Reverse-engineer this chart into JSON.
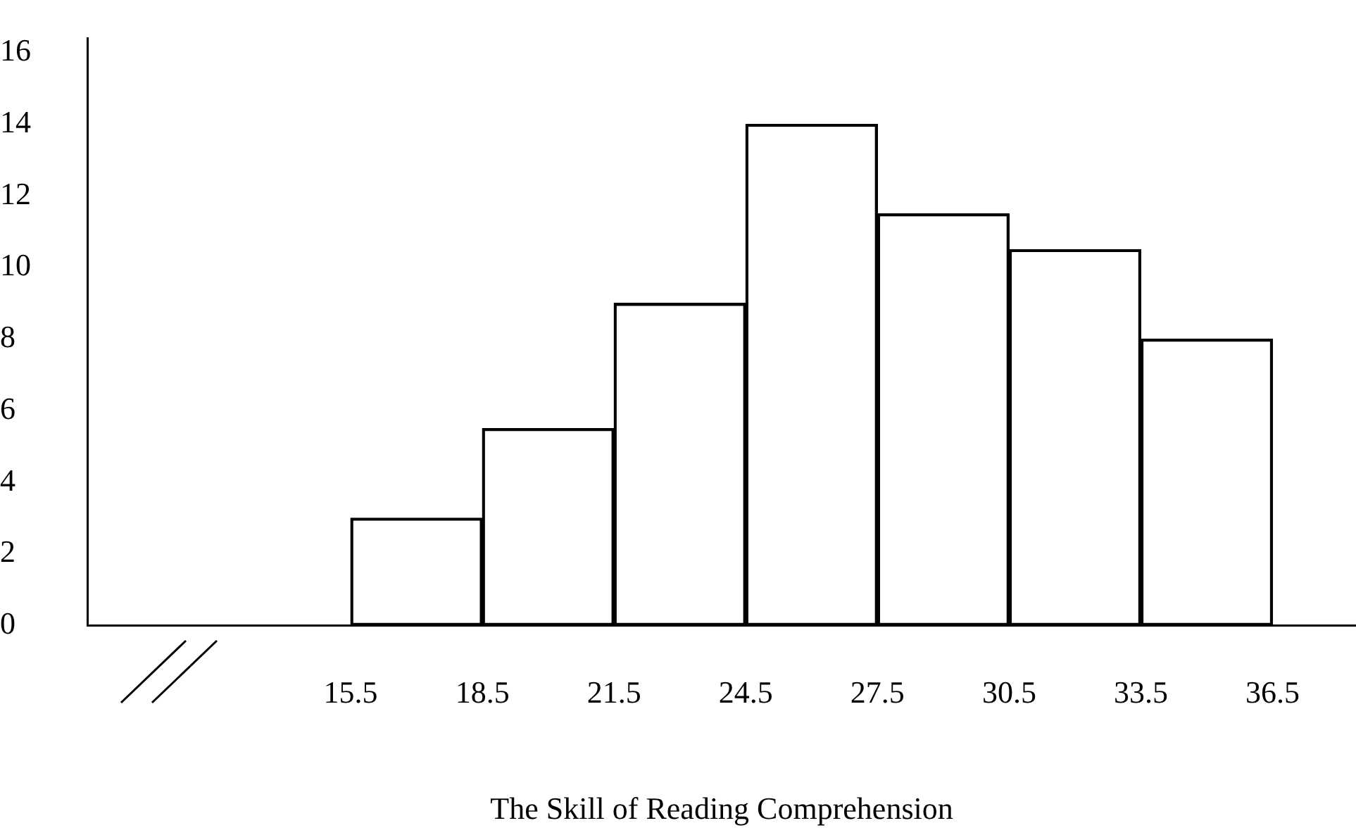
{
  "chart_data": {
    "type": "histogram",
    "xlabel": "The Skill of Reading Comprehension",
    "bins": [
      15.5,
      18.5,
      21.5,
      24.5,
      27.5,
      30.5,
      33.5,
      36.5
    ],
    "values": [
      3,
      5.5,
      9,
      14,
      11.5,
      10.5,
      8
    ],
    "color": "#000000",
    "xlim": [
      9.5,
      38.4
    ],
    "xticks": [
      15.5,
      18.5,
      21.5,
      24.5,
      27.5,
      30.5,
      33.5,
      36.5
    ],
    "ylim": [
      0,
      16.4
    ],
    "yticks": [
      0,
      2,
      4,
      6,
      8,
      10,
      12,
      14,
      16
    ],
    "grid": false,
    "legend": false
  }
}
